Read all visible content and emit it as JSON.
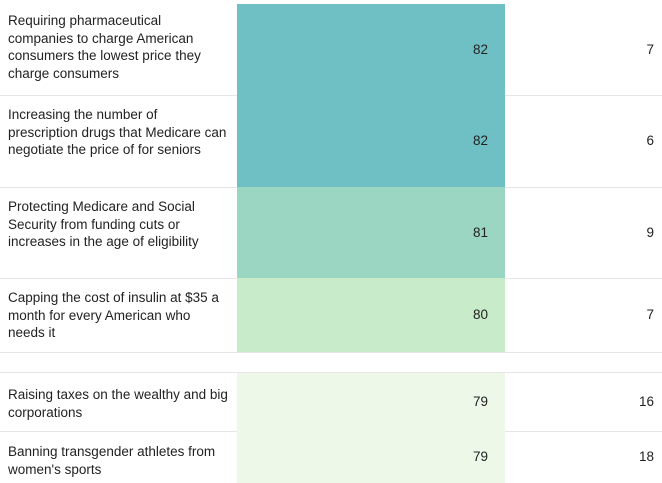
{
  "chart_data": {
    "type": "table",
    "columns": [
      "",
      "",
      ""
    ],
    "rows": [
      {
        "label": "Requiring pharmaceutical companies to charge American consumers the lowest price they charge consumers",
        "v1": 82,
        "v2": 7,
        "color": "#6fc0c5"
      },
      {
        "label": "Increasing the number of prescription drugs that Medicare can negotiate the price of for seniors",
        "v1": 82,
        "v2": 6,
        "color": "#6fc0c5"
      },
      {
        "label": "Protecting Medicare and Social Security from funding cuts or increases in the age of eligibility",
        "v1": 81,
        "v2": 9,
        "color": "#9ad6c1"
      },
      {
        "label": "Capping the cost of insulin at $35 a month for every American who needs it",
        "v1": 80,
        "v2": 7,
        "color": "#c8ebc9"
      },
      {
        "label": "Raising taxes on the wealthy and big corporations",
        "v1": 79,
        "v2": 16,
        "color": "#eef8e9"
      },
      {
        "label": "Banning transgender athletes from women's sports",
        "v1": 79,
        "v2": 18,
        "color": "#eef8e9"
      }
    ]
  }
}
